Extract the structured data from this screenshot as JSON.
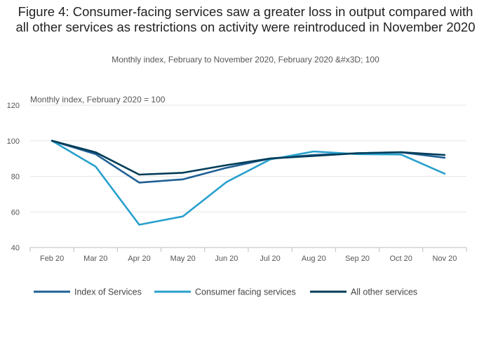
{
  "chart_data": {
    "type": "line",
    "title": "Figure 4: Consumer-facing services saw a greater loss in output compared with all other services as restrictions on activity were reintroduced in November 2020",
    "subtitle": "Monthly index, February to November 2020, February 2020 &#x3D; 100",
    "ylabel": "Monthly index, February 2020 = 100",
    "xlabel": "",
    "categories": [
      "Feb 20",
      "Mar 20",
      "Apr 20",
      "May 20",
      "Jun 20",
      "Jul 20",
      "Aug 20",
      "Sep 20",
      "Oct 20",
      "Nov 20"
    ],
    "ylim": [
      40,
      120
    ],
    "yticks": [
      40,
      60,
      80,
      100,
      120
    ],
    "grid": true,
    "legend_position": "bottom",
    "series": [
      {
        "name": "Index of Services",
        "color": "#206095",
        "values": [
          100,
          92.5,
          76.5,
          78.3,
          84.8,
          90.0,
          92.0,
          93.0,
          93.5,
          90.5
        ]
      },
      {
        "name": "Consumer facing services",
        "color": "#27a0cc",
        "values": [
          100,
          85.5,
          52.8,
          57.5,
          76.8,
          89.5,
          94.0,
          92.5,
          92.3,
          81.5
        ]
      },
      {
        "name": "All other services",
        "color": "#003c57",
        "values": [
          100,
          93.5,
          81.0,
          82.0,
          86.3,
          90.0,
          91.5,
          93.0,
          93.6,
          92.0
        ]
      }
    ]
  }
}
